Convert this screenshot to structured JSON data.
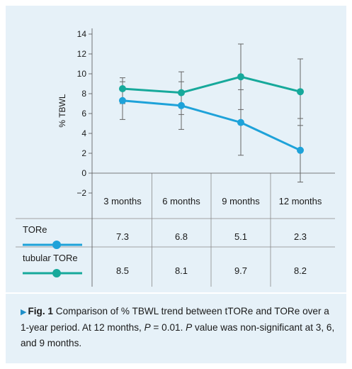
{
  "chart_data": {
    "type": "line",
    "ylabel": "% TBWL",
    "ylim": [
      -2,
      14
    ],
    "yticks": [
      -2,
      0,
      2,
      4,
      6,
      8,
      10,
      12,
      14
    ],
    "categories": [
      "3 months",
      "6 months",
      "9 months",
      "12 months"
    ],
    "series": [
      {
        "name": "TORe",
        "color": "#1ea2d9",
        "values": [
          7.3,
          6.8,
          5.1,
          2.3
        ],
        "error_low": [
          5.4,
          4.4,
          1.8,
          -0.9
        ],
        "error_high": [
          9.2,
          9.2,
          8.4,
          5.5
        ],
        "table_values": [
          "7.3",
          "6.8",
          "5.1",
          "2.3"
        ]
      },
      {
        "name": "tubular TORe",
        "color": "#17a99b",
        "values": [
          8.5,
          8.1,
          9.7,
          8.2
        ],
        "error_low": [
          7.0,
          5.9,
          6.4,
          4.8
        ],
        "error_high": [
          9.6,
          10.2,
          13.0,
          11.5
        ],
        "table_values": [
          "8.5",
          "8.1",
          "9.7",
          "8.2"
        ]
      }
    ]
  },
  "caption": {
    "arrow": "▶",
    "label": "Fig. 1",
    "text_1": " Comparison of % TBWL trend between tTORe and TORe over a 1-year period. At 12 months, ",
    "p1": "P",
    "text_2": " = 0.01. ",
    "p2": "P",
    "text_3": " value was non-significant at 3, 6, and 9 months."
  }
}
